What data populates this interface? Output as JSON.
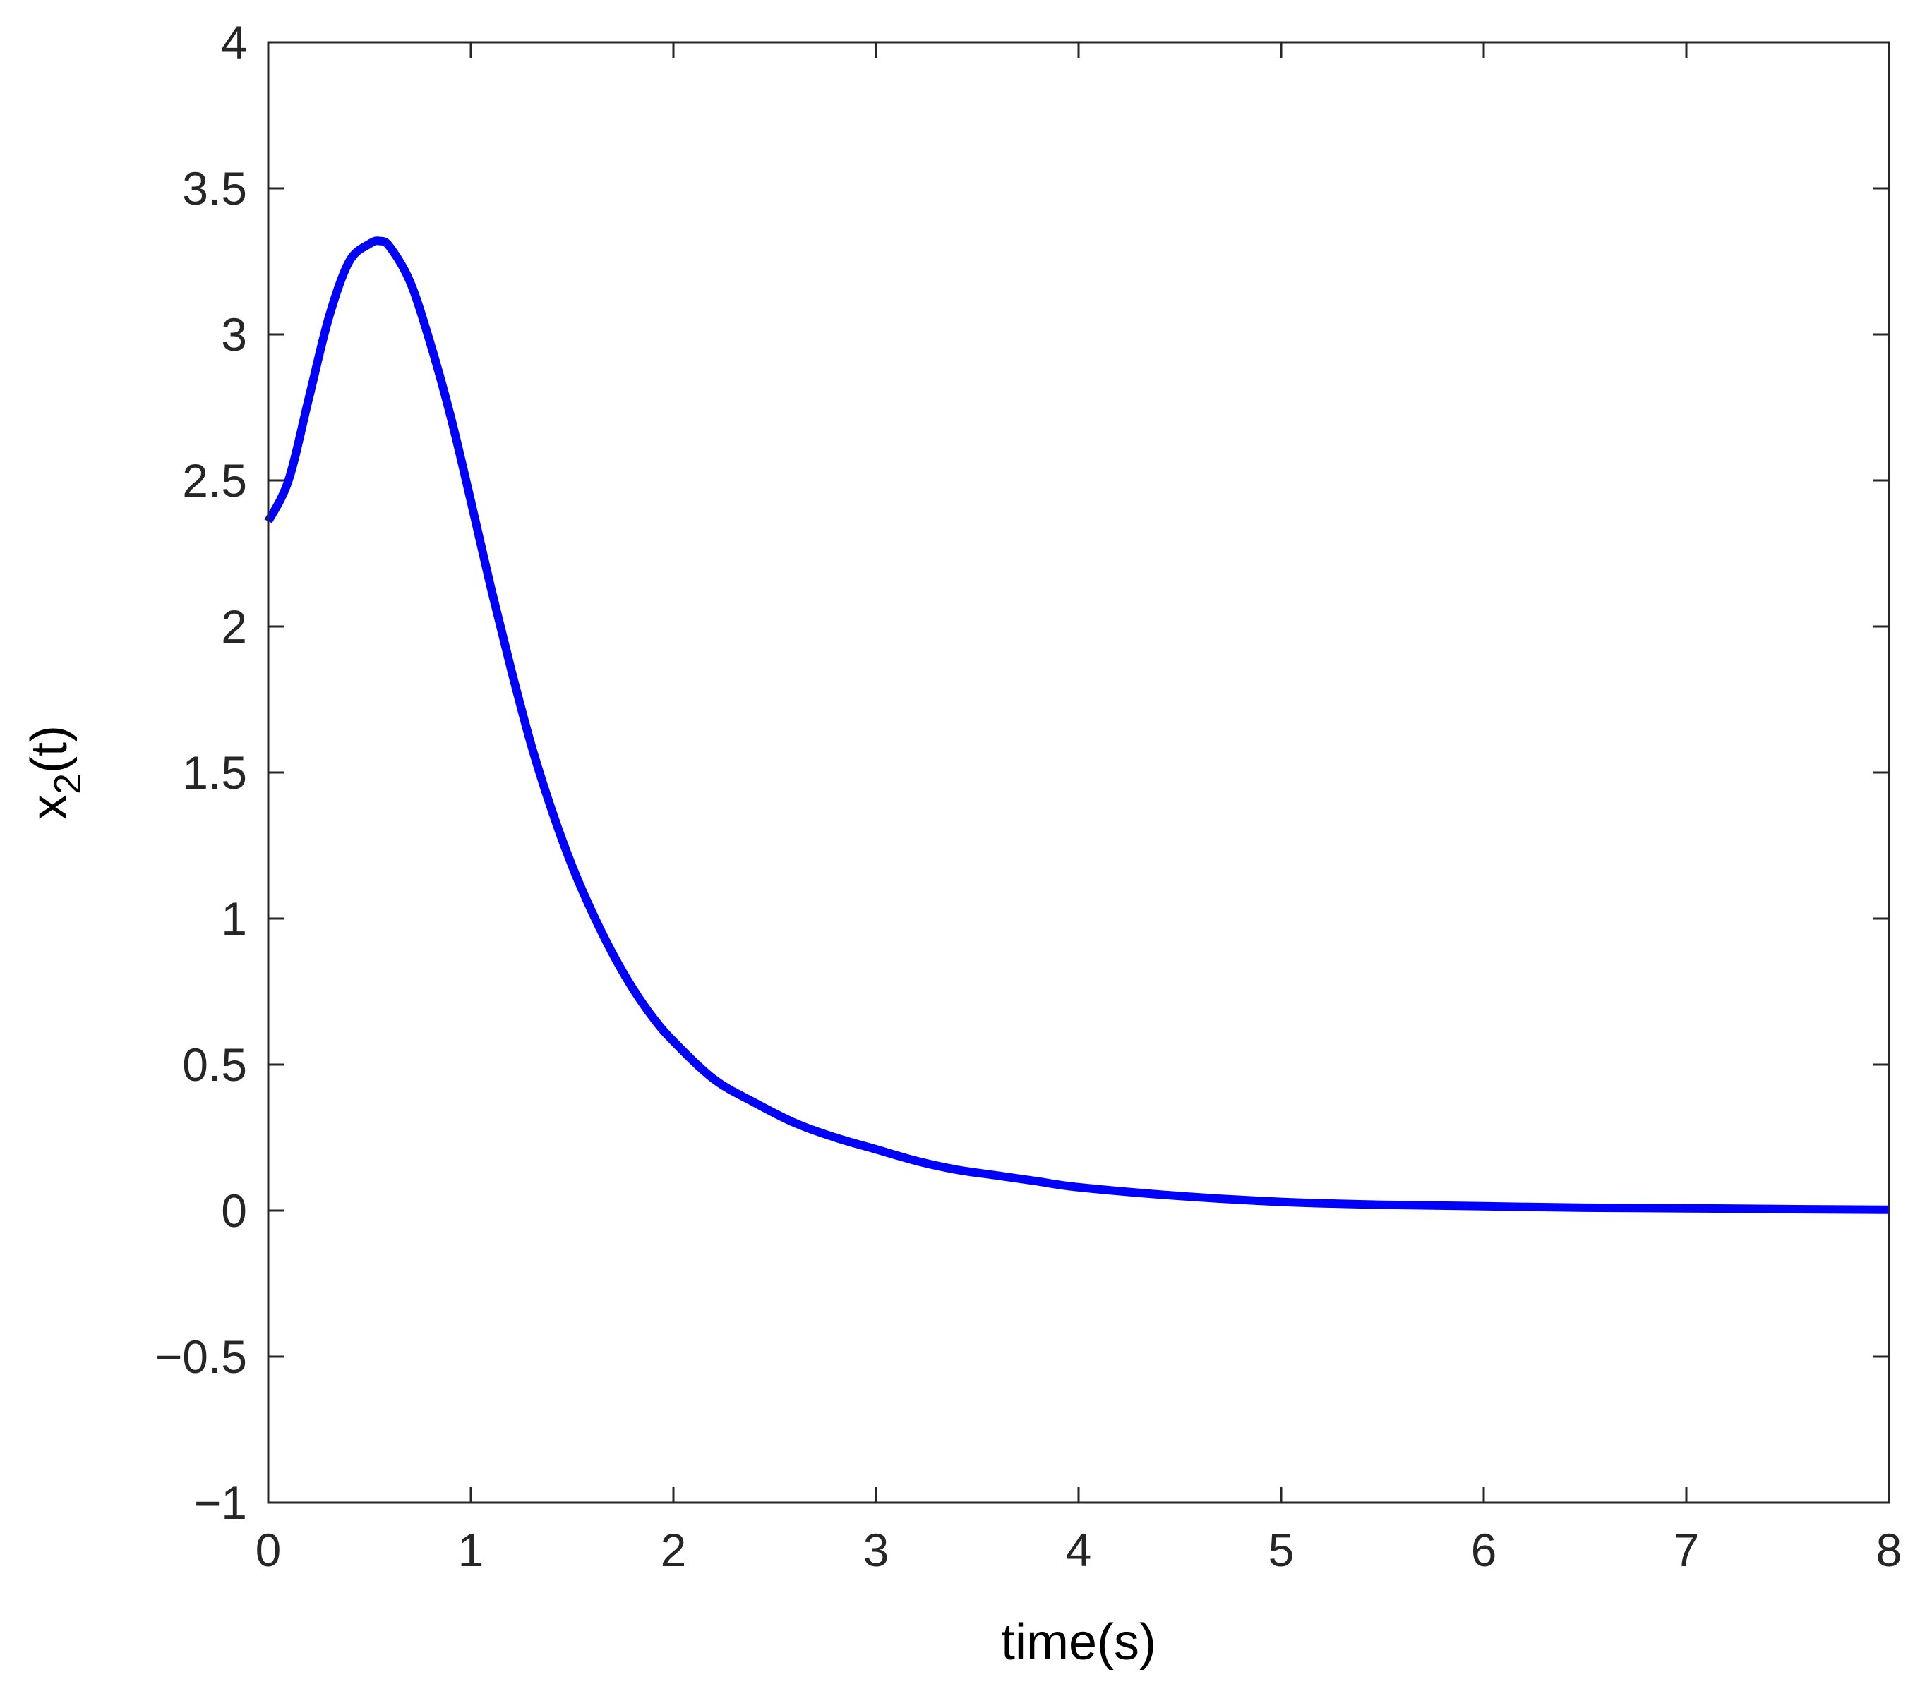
{
  "chart_data": {
    "type": "line",
    "title": "",
    "xlabel": "time(s)",
    "ylabel": {
      "base": "x",
      "subscript": "2",
      "suffix": "(t)"
    },
    "xlim": [
      0,
      8
    ],
    "ylim": [
      -1,
      4
    ],
    "grid": false,
    "box": true,
    "x_ticks": [
      0,
      1,
      2,
      3,
      4,
      5,
      6,
      7,
      8
    ],
    "x_tick_labels": [
      "0",
      "1",
      "2",
      "3",
      "4",
      "5",
      "6",
      "7",
      "8"
    ],
    "y_ticks": [
      -1,
      -0.5,
      0,
      0.5,
      1,
      1.5,
      2,
      2.5,
      3,
      3.5,
      4
    ],
    "y_tick_labels": [
      "−1",
      "−0.5",
      "0",
      "0.5",
      "1",
      "1.5",
      "2",
      "2.5",
      "3",
      "3.5",
      "4"
    ],
    "series": [
      {
        "color": "#0000ff",
        "x": [
          0,
          0.1,
          0.2,
          0.3,
          0.4,
          0.5,
          0.55,
          0.6,
          0.7,
          0.8,
          0.9,
          1.0,
          1.1,
          1.2,
          1.3,
          1.4,
          1.5,
          1.6,
          1.7,
          1.8,
          1.9,
          2.0,
          2.2,
          2.4,
          2.6,
          2.8,
          3.0,
          3.2,
          3.4,
          3.6,
          3.8,
          4.0,
          4.5,
          5.0,
          5.5,
          6.0,
          6.5,
          7.0,
          7.5,
          8.0
        ],
        "y": [
          2.36,
          2.5,
          2.78,
          3.06,
          3.25,
          3.31,
          3.32,
          3.3,
          3.18,
          2.97,
          2.72,
          2.43,
          2.13,
          1.85,
          1.59,
          1.37,
          1.18,
          1.02,
          0.88,
          0.76,
          0.66,
          0.58,
          0.45,
          0.37,
          0.3,
          0.25,
          0.21,
          0.17,
          0.14,
          0.12,
          0.1,
          0.08,
          0.05,
          0.03,
          0.02,
          0.015,
          0.01,
          0.008,
          0.005,
          0.003
        ]
      }
    ]
  }
}
